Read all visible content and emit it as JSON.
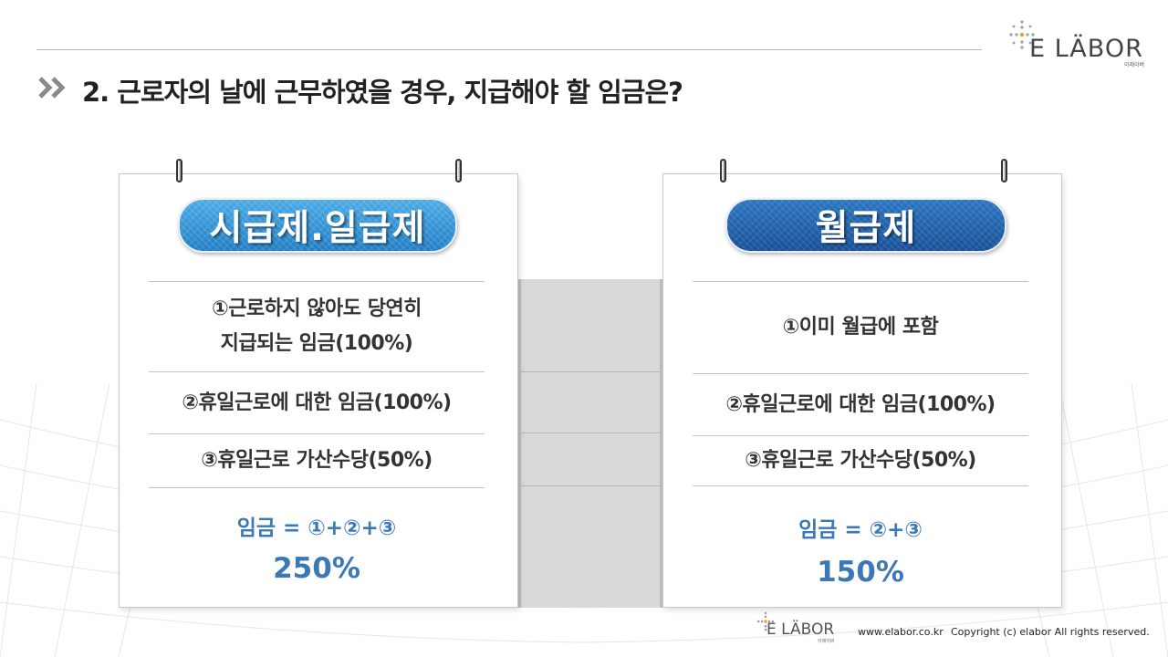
{
  "brand": {
    "logo_text": "E LÄBOR",
    "logo_sub": "이래이버"
  },
  "title": "2. 근로자의 날에 근무하였을 경우, 지급해야 할 임금은?",
  "cards": {
    "left": {
      "heading": "시급제.일급제",
      "items": [
        "①근로하지 않아도 당연히",
        "지급되는 임금(100%)",
        "②휴일근로에 대한 임금(100%)",
        "③휴일근로 가산수당(50%)"
      ],
      "formula": "임금 = ①+②+③",
      "total": "250%"
    },
    "right": {
      "heading": "월급제",
      "items": [
        "①이미 월급에 포함",
        "②휴일근로에 대한 임금(100%)",
        "③휴일근로 가산수당(50%)"
      ],
      "formula": "임금 = ②+③",
      "total": "150%"
    }
  },
  "footer": {
    "logo_text": "E LÄBOR",
    "logo_sub": "이래이버",
    "url": "www.elabor.co.kr",
    "copyright": "Copyright (c) elabor All rights reserved."
  },
  "colors": {
    "heading_light": "#2b8fd3",
    "heading_dark": "#1b62ad",
    "wage_text": "#3c78b5",
    "body_text": "#333333"
  },
  "icons": [
    "chevron-double-right-icon",
    "starburst-logo-icon",
    "binder-ring-icon"
  ]
}
